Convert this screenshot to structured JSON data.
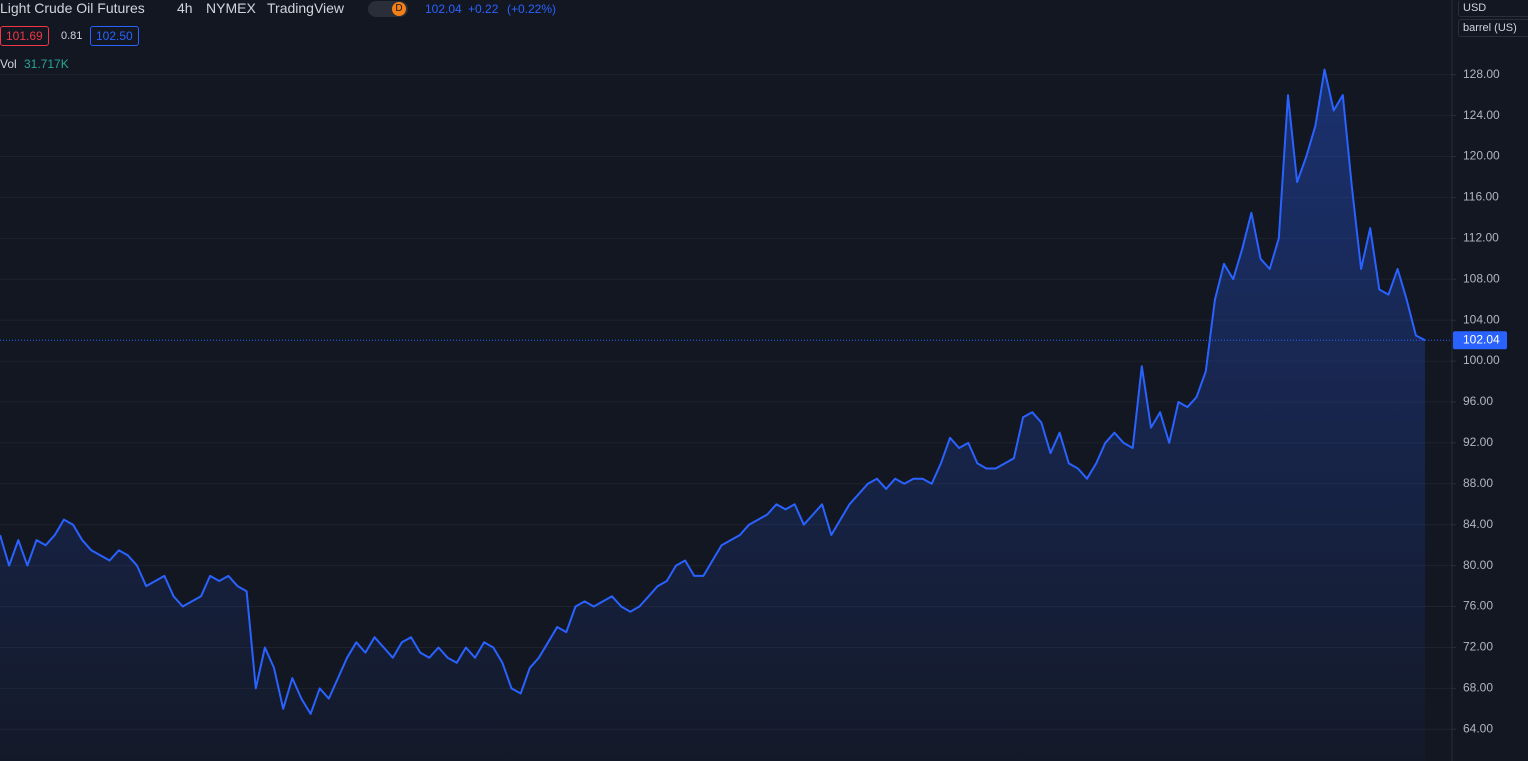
{
  "chart_data": {
    "type": "area",
    "title": "Light Crude Oil Futures",
    "interval": "4h",
    "exchange": "NYMEX",
    "source": "TradingView",
    "badge": "D",
    "last": "102.04",
    "change": "+0.22",
    "change_pct": "(+0.22%)",
    "bid": "101.69",
    "spread": "0.81",
    "ask": "102.50",
    "volume_label": "Vol",
    "volume_value": "31.717K",
    "currency": "USD",
    "unit": "barrel (US)",
    "color": "#2962ff",
    "last_value": 102.04,
    "last_value_label": "102.04",
    "values": [
      83,
      80,
      82.5,
      80,
      82.5,
      82,
      83,
      84.5,
      84,
      82.5,
      81.5,
      81,
      80.5,
      81.5,
      81,
      80,
      78,
      78.5,
      79,
      77,
      76,
      76.5,
      77,
      79,
      78.5,
      79,
      78,
      77.5,
      68,
      72,
      70,
      66,
      69,
      67,
      65.5,
      68,
      67,
      69,
      71,
      72.5,
      71.5,
      73,
      72,
      71,
      72.5,
      73,
      71.5,
      71,
      72,
      71,
      70.5,
      72,
      71,
      72.5,
      72,
      70.5,
      68,
      67.5,
      70,
      71,
      72.5,
      74,
      73.5,
      76,
      76.5,
      76,
      76.5,
      77,
      76,
      75.5,
      76,
      77,
      78,
      78.5,
      80,
      80.5,
      79,
      79,
      80.5,
      82,
      82.5,
      83,
      84,
      84.5,
      85,
      86,
      85.5,
      86,
      84,
      85,
      86,
      83,
      84.5,
      86,
      87,
      88,
      88.5,
      87.5,
      88.5,
      88,
      88.5,
      88.5,
      88,
      90,
      92.5,
      91.5,
      92,
      90,
      89.5,
      89.5,
      90,
      90.5,
      94.5,
      95,
      94,
      91,
      93,
      90,
      89.5,
      88.5,
      90,
      92,
      93,
      92,
      91.5,
      99.5,
      93.5,
      95,
      92,
      96,
      95.5,
      96.5,
      99,
      106,
      109.5,
      108,
      111,
      114.5,
      110,
      109,
      112,
      126,
      117.5,
      120,
      123,
      128.5,
      124.5,
      126,
      117,
      109,
      113,
      107,
      106.5,
      109,
      106,
      102.5,
      102.04
    ],
    "ylim": [
      60.9,
      135.3
    ],
    "yticks": [
      {
        "value": 64,
        "label": "64.00"
      },
      {
        "value": 68,
        "label": "68.00"
      },
      {
        "value": 72,
        "label": "72.00"
      },
      {
        "value": 76,
        "label": "76.00"
      },
      {
        "value": 80,
        "label": "80.00"
      },
      {
        "value": 84,
        "label": "84.00"
      },
      {
        "value": 88,
        "label": "88.00"
      },
      {
        "value": 92,
        "label": "92.00"
      },
      {
        "value": 96,
        "label": "96.00"
      },
      {
        "value": 100,
        "label": "100.00"
      },
      {
        "value": 104,
        "label": "104.00"
      },
      {
        "value": 108,
        "label": "108.00"
      },
      {
        "value": 112,
        "label": "112.00"
      },
      {
        "value": 116,
        "label": "116.00"
      },
      {
        "value": 120,
        "label": "120.00"
      },
      {
        "value": 124,
        "label": "124.00"
      },
      {
        "value": 128,
        "label": "128.00"
      }
    ],
    "grid": true
  }
}
